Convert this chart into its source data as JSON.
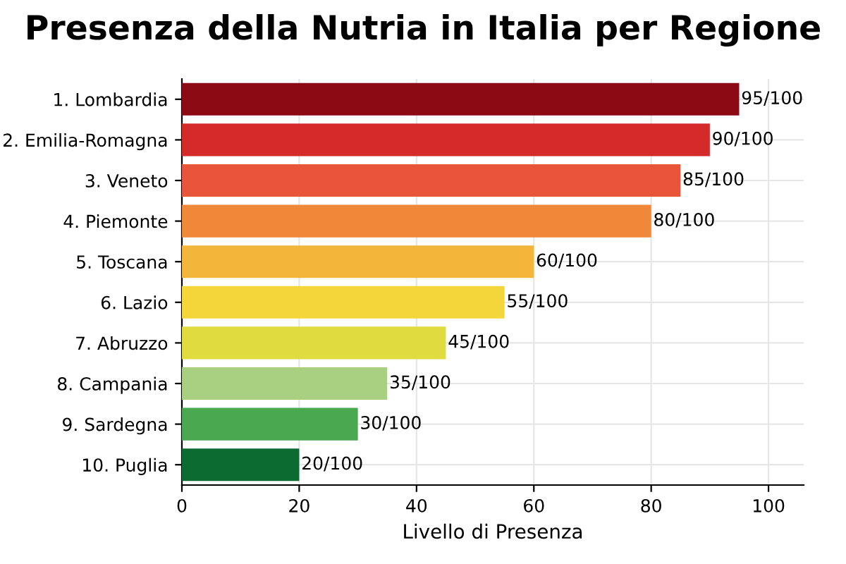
{
  "chart_data": {
    "type": "bar",
    "orientation": "horizontal",
    "title": "Presenza della Nutria in Italia per Regione",
    "xlabel": "Livello di Presenza",
    "categories": [
      "1. Lombardia",
      "2. Emilia-Romagna",
      "3. Veneto",
      "4. Piemonte",
      "5. Toscana",
      "6. Lazio",
      "7. Abruzzo",
      "8. Campania",
      "9. Sardegna",
      "10. Puglia"
    ],
    "values": [
      95,
      90,
      85,
      80,
      60,
      55,
      45,
      35,
      30,
      20
    ],
    "value_labels": [
      "95/100",
      "90/100",
      "85/100",
      "80/100",
      "60/100",
      "55/100",
      "45/100",
      "35/100",
      "30/100",
      "20/100"
    ],
    "colors": [
      "#8b0a14",
      "#d42a2a",
      "#e8553a",
      "#f0883a",
      "#f4b63a",
      "#f5d63a",
      "#e0dc40",
      "#a8d080",
      "#4aa850",
      "#0b6b30"
    ],
    "xlim": [
      0,
      106
    ],
    "xticks": [
      0,
      20,
      40,
      60,
      80,
      100
    ],
    "grid": true
  }
}
